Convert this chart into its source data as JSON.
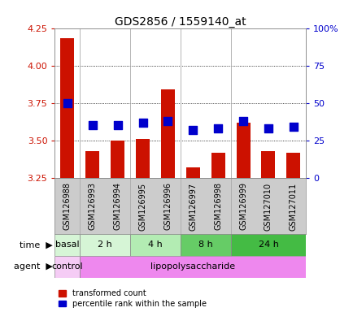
{
  "title": "GDS2856 / 1559140_at",
  "samples": [
    "GSM126988",
    "GSM126993",
    "GSM126994",
    "GSM126995",
    "GSM126996",
    "GSM126997",
    "GSM126998",
    "GSM126999",
    "GSM127010",
    "GSM127011"
  ],
  "red_values": [
    4.18,
    3.43,
    3.5,
    3.51,
    3.84,
    3.32,
    3.42,
    3.62,
    3.43,
    3.42
  ],
  "blue_values": [
    50,
    35,
    35,
    37,
    38,
    32,
    33,
    38,
    33,
    34
  ],
  "ylim_left": [
    3.25,
    4.25
  ],
  "ylim_right": [
    0,
    100
  ],
  "yticks_left": [
    3.25,
    3.5,
    3.75,
    4.0,
    4.25
  ],
  "yticks_right": [
    0,
    25,
    50,
    75,
    100
  ],
  "ytick_labels_right": [
    "0",
    "25",
    "50",
    "75",
    "100%"
  ],
  "time_groups": [
    {
      "label": "basal",
      "start": 0,
      "end": 1,
      "color": "#d6f5d6"
    },
    {
      "label": "2 h",
      "start": 1,
      "end": 3,
      "color": "#d6f5d6"
    },
    {
      "label": "4 h",
      "start": 3,
      "end": 5,
      "color": "#b3ecb3"
    },
    {
      "label": "8 h",
      "start": 5,
      "end": 7,
      "color": "#66cc66"
    },
    {
      "label": "24 h",
      "start": 7,
      "end": 10,
      "color": "#44bb44"
    }
  ],
  "agent_groups": [
    {
      "label": "control",
      "start": 0,
      "end": 1,
      "color": "#f5ccf5"
    },
    {
      "label": "lipopolysaccharide",
      "start": 1,
      "end": 10,
      "color": "#ee88ee"
    }
  ],
  "bar_color": "#cc1100",
  "dot_color": "#0000cc",
  "grid_color": "#000000",
  "bg_color": "#ffffff",
  "sample_label_bg": "#cccccc",
  "label_color_left": "#cc1100",
  "label_color_right": "#0000cc",
  "bar_bottom": 3.25,
  "bar_width": 0.55,
  "dot_size": 55,
  "sep_color": "#aaaaaa",
  "group_seps": [
    1,
    3,
    5,
    7
  ]
}
